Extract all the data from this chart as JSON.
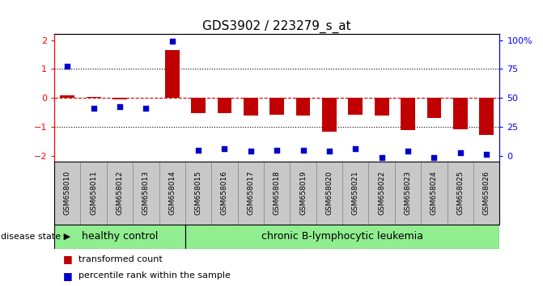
{
  "title": "GDS3902 / 223279_s_at",
  "samples": [
    "GSM658010",
    "GSM658011",
    "GSM658012",
    "GSM658013",
    "GSM658014",
    "GSM658015",
    "GSM658016",
    "GSM658017",
    "GSM658018",
    "GSM658019",
    "GSM658020",
    "GSM658021",
    "GSM658022",
    "GSM658023",
    "GSM658024",
    "GSM658025",
    "GSM658026"
  ],
  "bar_values": [
    0.08,
    0.04,
    -0.04,
    0.0,
    1.65,
    -0.52,
    -0.52,
    -0.62,
    -0.58,
    -0.62,
    -1.18,
    -0.58,
    -0.6,
    -1.12,
    -0.68,
    -1.08,
    -1.28
  ],
  "dot_values_left": [
    1.1,
    -0.35,
    -0.3,
    -0.35,
    1.95,
    -1.8,
    -1.75,
    -1.85,
    -1.8,
    -1.8,
    -1.85,
    -1.75,
    -2.05,
    -1.85,
    -2.05,
    -1.9,
    -1.95
  ],
  "ylim": [
    -2.2,
    2.2
  ],
  "yticks_left": [
    -2,
    -1,
    0,
    1,
    2
  ],
  "right_tick_positions": [
    -2.0,
    -1.0,
    0.0,
    1.0,
    2.0
  ],
  "right_tick_labels": [
    "0",
    "25",
    "50",
    "75",
    "100%"
  ],
  "bar_color": "#C00000",
  "dot_color": "#0000CC",
  "hline_color": "#CC0000",
  "dotline_color": "black",
  "healthy_color": "#90EE90",
  "leukemia_color": "#90EE90",
  "sample_box_color": "#C8C8C8",
  "healthy_label": "healthy control",
  "leukemia_label": "chronic B-lymphocytic leukemia",
  "disease_state_label": "disease state",
  "legend_bar_label": "transformed count",
  "legend_dot_label": "percentile rank within the sample",
  "n_healthy": 5,
  "n_total": 17,
  "bar_width": 0.55,
  "title_fontsize": 11,
  "sample_fontsize": 6.5,
  "group_label_fontsize": 9,
  "legend_fontsize": 8,
  "ytick_fontsize": 8
}
